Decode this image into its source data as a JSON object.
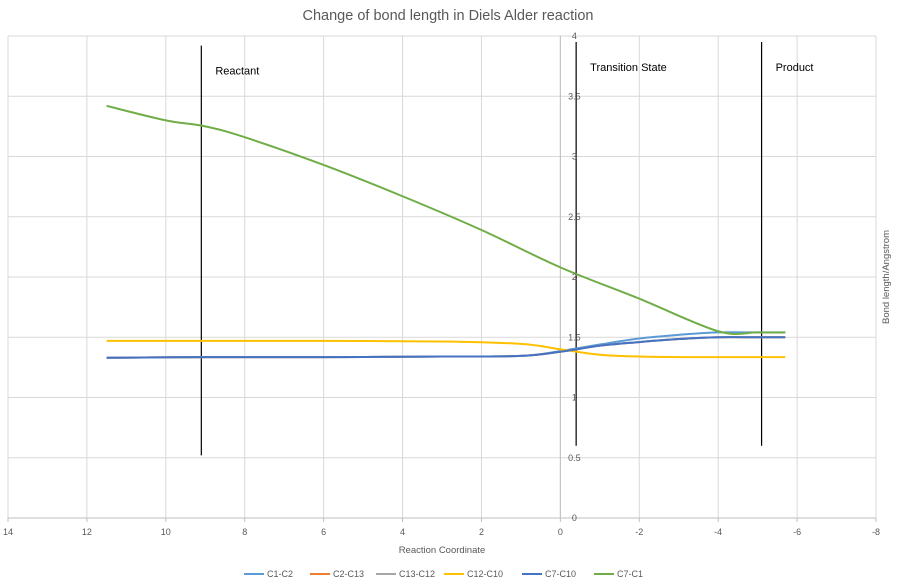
{
  "chart_data": {
    "type": "line",
    "title": "Change of bond length in Diels Alder reaction",
    "xlabel": "Reaction Coordinate",
    "ylabel": "Bond length/Angstrom",
    "xlim": [
      14,
      -8
    ],
    "ylim": [
      0,
      4
    ],
    "x_reversed": true,
    "x_ticks": [
      14,
      12,
      10,
      8,
      6,
      4,
      2,
      0,
      -2,
      -4,
      -6,
      -8
    ],
    "y_ticks": [
      0,
      0.5,
      1,
      1.5,
      2,
      2.5,
      3,
      3.5,
      4
    ],
    "grid": true,
    "legend_position": "bottom",
    "vertical_markers": [
      {
        "x": 9.1,
        "label": "Reactant",
        "y_range": [
          0.52,
          3.92
        ]
      },
      {
        "x": -0.4,
        "label": "Transition State",
        "y_range": [
          0.6,
          3.95
        ]
      },
      {
        "x": -5.1,
        "label": "Product",
        "y_range": [
          0.6,
          3.95
        ]
      }
    ],
    "series": [
      {
        "name": "C1-C2",
        "color": "#5b9bd5",
        "x": [
          11.5,
          9,
          6,
          3,
          1,
          0,
          -1,
          -2,
          -3,
          -4,
          -5,
          -5.7
        ],
        "y": [
          1.33,
          1.335,
          1.335,
          1.34,
          1.345,
          1.385,
          1.44,
          1.49,
          1.52,
          1.54,
          1.54,
          1.54
        ]
      },
      {
        "name": "C2-C13",
        "color": "#ed7d31",
        "x": [
          11.5,
          9,
          6,
          3,
          1,
          0,
          -1,
          -2,
          -3,
          -4,
          -5,
          -5.7
        ],
        "y": [
          1.33,
          1.335,
          1.335,
          1.34,
          1.345,
          1.38,
          1.43,
          1.46,
          1.485,
          1.5,
          1.5,
          1.5
        ]
      },
      {
        "name": "C13-C12",
        "color": "#a5a5a5",
        "x": [
          11.5,
          9,
          6,
          3,
          1,
          0,
          -1,
          -2,
          -3,
          -4,
          -5,
          -5.7
        ],
        "y": [
          1.33,
          1.335,
          1.335,
          1.34,
          1.345,
          1.38,
          1.43,
          1.46,
          1.485,
          1.5,
          1.5,
          1.5
        ]
      },
      {
        "name": "C12-C10",
        "color": "#ffc000",
        "x": [
          11.5,
          9,
          6,
          3,
          1,
          0,
          -1,
          -2,
          -3,
          -4,
          -5,
          -5.7
        ],
        "y": [
          1.47,
          1.47,
          1.47,
          1.465,
          1.445,
          1.4,
          1.355,
          1.34,
          1.335,
          1.335,
          1.335,
          1.335
        ]
      },
      {
        "name": "C7-C10",
        "color": "#4472c4",
        "x": [
          11.5,
          9,
          6,
          3,
          1,
          0,
          -1,
          -2,
          -3,
          -4,
          -5,
          -5.7
        ],
        "y": [
          1.33,
          1.335,
          1.335,
          1.34,
          1.345,
          1.38,
          1.43,
          1.46,
          1.485,
          1.5,
          1.5,
          1.5
        ]
      },
      {
        "name": "C7-C1",
        "color": "#70ad47",
        "x": [
          11.5,
          10,
          9,
          8,
          6,
          4,
          2,
          0,
          -2,
          -4,
          -5,
          -5.7
        ],
        "y": [
          3.42,
          3.3,
          3.25,
          3.16,
          2.93,
          2.67,
          2.39,
          2.08,
          1.82,
          1.55,
          1.54,
          1.54
        ]
      }
    ]
  }
}
